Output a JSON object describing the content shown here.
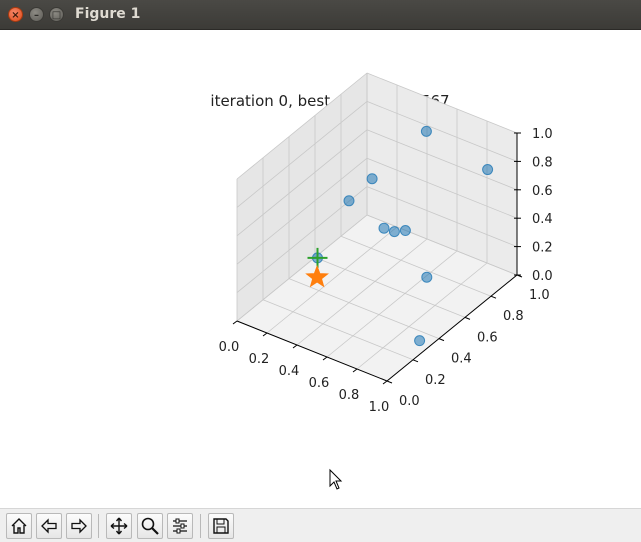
{
  "window": {
    "title": "Figure 1",
    "close_glyph": "×",
    "min_glyph": "–",
    "max_glyph": "□"
  },
  "chart_data": {
    "type": "scatter3d",
    "title": "iteration 0, best_fitness: 0.7567",
    "xlim": [
      0,
      1
    ],
    "ylim": [
      0,
      1
    ],
    "zlim": [
      0,
      1
    ],
    "x_ticks": [
      "0.0",
      "0.2",
      "0.4",
      "0.6",
      "0.8",
      "1.0"
    ],
    "y_ticks": [
      "0.0",
      "0.2",
      "0.4",
      "0.6",
      "0.8",
      "1.0"
    ],
    "z_ticks": [
      "0.0",
      "0.2",
      "0.4",
      "0.6",
      "0.8",
      "1.0"
    ],
    "grid": true,
    "population": [
      {
        "x": 0.45,
        "y": 0.1,
        "z": 0.56
      },
      {
        "x": 0.27,
        "y": 0.55,
        "z": 0.55
      },
      {
        "x": 0.19,
        "y": 0.82,
        "z": 0.47
      },
      {
        "x": 0.46,
        "y": 0.6,
        "z": 0.4
      },
      {
        "x": 0.72,
        "y": 0.38,
        "z": 0.65
      },
      {
        "x": 0.5,
        "y": 0.88,
        "z": 0.89
      },
      {
        "x": 0.88,
        "y": 0.28,
        "z": 0.8
      },
      {
        "x": 0.78,
        "y": 0.56,
        "z": 0.22
      },
      {
        "x": 0.96,
        "y": 0.82,
        "z": 0.86
      },
      {
        "x": 0.94,
        "y": 0.32,
        "z": 0.02
      }
    ],
    "best": {
      "x": 0.45,
      "y": 0.1,
      "z": 0.56
    },
    "target": {
      "x": 0.43,
      "y": 0.12,
      "z": 0.4
    },
    "colors": {
      "population": "#1f77b4",
      "best": "#2ca02c",
      "target": "#ff7f0e"
    }
  },
  "toolbar": {
    "icons": [
      "home-icon",
      "back-icon",
      "forward-icon",
      "pan-icon",
      "zoom-icon",
      "configure-subplots-icon",
      "save-icon"
    ]
  }
}
